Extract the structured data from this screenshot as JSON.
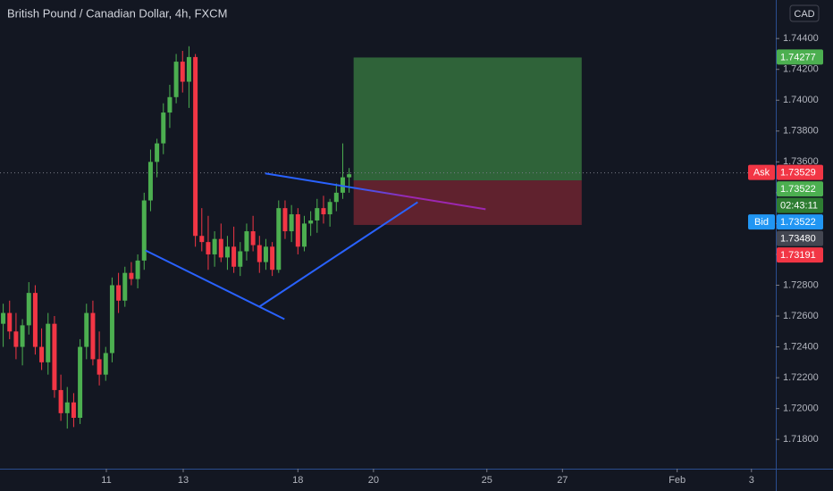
{
  "chart_data": {
    "type": "candlestick",
    "title": "British Pound / Canadian Dollar, 4h, FXCM",
    "currency": "CAD",
    "up_color": "#4caf50",
    "down_color": "#f23645",
    "series": [
      {
        "open": [
          1.7255,
          1.7262,
          1.725,
          1.724,
          1.7254,
          1.7275,
          1.724,
          1.723,
          1.7255,
          1.7212,
          1.7197,
          1.7204,
          1.7194,
          1.724,
          1.7262,
          1.7232,
          1.7222,
          1.7236,
          1.728,
          1.727,
          1.7288,
          1.7284,
          1.7296,
          1.7335,
          1.736,
          1.7372,
          1.7392,
          1.7402,
          1.7425,
          1.7412,
          1.7428,
          1.7312,
          1.7308,
          1.73,
          1.731,
          1.7298,
          1.7305,
          1.7292,
          1.7302,
          1.7315,
          1.7306,
          1.7295,
          1.7305,
          1.729,
          1.733,
          1.7315,
          1.7326,
          1.7305,
          1.732,
          1.7322,
          1.733,
          1.7326,
          1.7334,
          1.734,
          1.735
        ],
        "high": [
          1.7268,
          1.727,
          1.7262,
          1.7258,
          1.7282,
          1.728,
          1.7252,
          1.7262,
          1.726,
          1.7222,
          1.7214,
          1.721,
          1.7245,
          1.7268,
          1.727,
          1.725,
          1.724,
          1.7285,
          1.7288,
          1.7292,
          1.7295,
          1.73,
          1.734,
          1.7368,
          1.7375,
          1.7398,
          1.741,
          1.743,
          1.7432,
          1.7435,
          1.743,
          1.733,
          1.7325,
          1.7315,
          1.732,
          1.7312,
          1.7318,
          1.7308,
          1.732,
          1.7325,
          1.7312,
          1.731,
          1.7308,
          1.7335,
          1.7335,
          1.7332,
          1.733,
          1.7325,
          1.7328,
          1.7336,
          1.7338,
          1.7336,
          1.7346,
          1.7372,
          1.7356
        ],
        "low": [
          1.724,
          1.7245,
          1.7232,
          1.7228,
          1.7248,
          1.7235,
          1.7225,
          1.7222,
          1.7207,
          1.7192,
          1.7187,
          1.7188,
          1.719,
          1.7232,
          1.7228,
          1.7215,
          1.7218,
          1.723,
          1.7262,
          1.7266,
          1.728,
          1.7278,
          1.729,
          1.7328,
          1.735,
          1.7365,
          1.7382,
          1.7398,
          1.7405,
          1.7395,
          1.7305,
          1.7302,
          1.729,
          1.7292,
          1.7295,
          1.729,
          1.7288,
          1.7286,
          1.7296,
          1.7302,
          1.7288,
          1.729,
          1.7286,
          1.7288,
          1.731,
          1.7308,
          1.73,
          1.7302,
          1.7312,
          1.7314,
          1.732,
          1.7318,
          1.7328,
          1.7336,
          1.734
        ],
        "close": [
          1.7262,
          1.725,
          1.724,
          1.7254,
          1.7275,
          1.724,
          1.723,
          1.7255,
          1.7212,
          1.7197,
          1.7204,
          1.7194,
          1.724,
          1.7262,
          1.7232,
          1.7222,
          1.7236,
          1.728,
          1.727,
          1.7288,
          1.7284,
          1.7296,
          1.7335,
          1.736,
          1.7372,
          1.7392,
          1.7402,
          1.7425,
          1.7412,
          1.7428,
          1.7312,
          1.7308,
          1.73,
          1.731,
          1.7298,
          1.7305,
          1.7292,
          1.7302,
          1.7315,
          1.7306,
          1.7295,
          1.7305,
          1.729,
          1.733,
          1.7315,
          1.7326,
          1.7305,
          1.732,
          1.7322,
          1.733,
          1.7326,
          1.7334,
          1.734,
          1.735,
          1.7352
        ]
      }
    ],
    "xlim": [
      -0.5,
      120.6
    ],
    "xticks": [
      {
        "value": 16.1,
        "label": "11"
      },
      {
        "value": 28.1,
        "label": "13"
      },
      {
        "value": 46.0,
        "label": "18"
      },
      {
        "value": 57.8,
        "label": "20"
      },
      {
        "value": 75.5,
        "label": "25"
      },
      {
        "value": 87.3,
        "label": "27"
      },
      {
        "value": 105.2,
        "label": "Feb"
      },
      {
        "value": 116.8,
        "label": "3"
      }
    ],
    "ylim": [
      1.7161,
      1.7465
    ],
    "yticks": [
      {
        "value": 1.718,
        "label": "1.71800"
      },
      {
        "value": 1.72,
        "label": "1.72000"
      },
      {
        "value": 1.722,
        "label": "1.72200"
      },
      {
        "value": 1.724,
        "label": "1.72400"
      },
      {
        "value": 1.726,
        "label": "1.72600"
      },
      {
        "value": 1.728,
        "label": "1.72800"
      },
      {
        "value": 1.73,
        "label": "1.73000"
      },
      {
        "value": 1.732,
        "label": "1.73200"
      },
      {
        "value": 1.734,
        "label": "1.73400"
      },
      {
        "value": 1.736,
        "label": "1.73600"
      },
      {
        "value": 1.738,
        "label": "1.73800"
      },
      {
        "value": 1.74,
        "label": "1.74000"
      },
      {
        "value": 1.742,
        "label": "1.74200"
      },
      {
        "value": 1.744,
        "label": "1.74400"
      }
    ],
    "trend_lines": [
      {
        "x": [
          22.2,
          43.9
        ],
        "y": [
          1.73026,
          1.7258
        ],
        "color": "#2962ff"
      },
      {
        "x": [
          40.0,
          64.7
        ],
        "y": [
          1.72661,
          1.73339
        ],
        "color": "#2962ff"
      },
      {
        "x": [
          40.9,
          75.3
        ],
        "y": [
          1.73525,
          1.73293
        ],
        "color": [
          "#2962ff",
          "#9c27b0"
        ]
      }
    ],
    "long_position": {
      "x": [
        54.7,
        90.3
      ],
      "profit_color": "rgba(76,175,80,0.5)",
      "loss_color": "rgba(242,54,69,0.35)"
    },
    "price_labels": [
      {
        "value": 1.74277,
        "label": "1.74277",
        "color": "#4caf50"
      },
      {
        "value": 1.73529,
        "label": "1.73529",
        "tag": "Ask",
        "color": "#f23645"
      },
      {
        "value": 1.73522,
        "label": "1.73522",
        "color": "#4caf50"
      },
      {
        "label": "02:43:11",
        "color": "#2e7d32"
      },
      {
        "value": 1.73522,
        "label": "1.73522",
        "tag": "Bid",
        "color": "#2196f3"
      },
      {
        "value": 1.7348,
        "label": "1.73480",
        "color": "#434651"
      },
      {
        "value": 1.73191,
        "label": "1.73191",
        "color": "#f23645"
      }
    ]
  }
}
